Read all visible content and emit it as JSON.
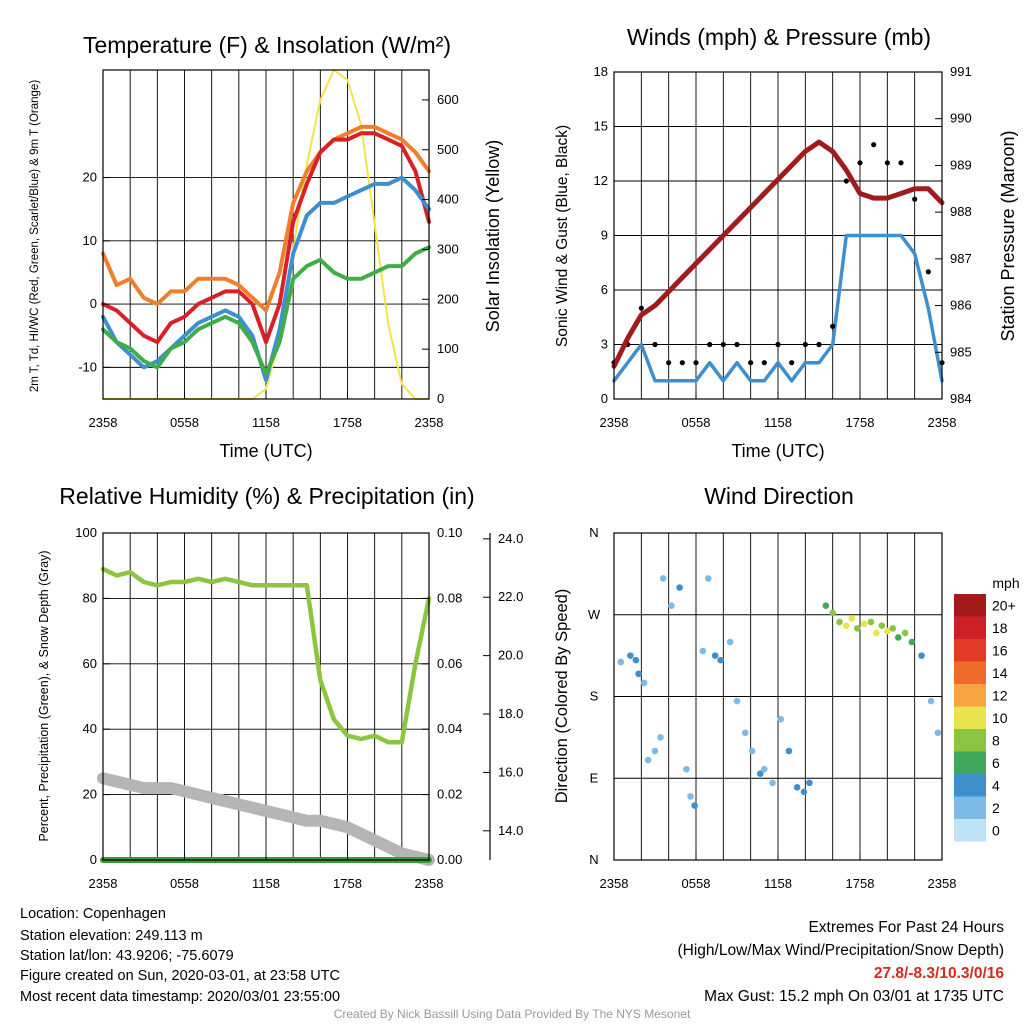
{
  "x_ticks": [
    "2358",
    "0558",
    "1158",
    "1758",
    "2358"
  ],
  "chart_data": [
    {
      "type": "line",
      "title": "Temperature (F) & Insolation (W/m²)",
      "xlabel": "Time (UTC)",
      "ylabel": "2m T, Td, HI/WC (Red, Green, Scarlet/Blue) & 9m T (Orange)",
      "y2label": "Solar Insolation (Yellow)",
      "ylim": [
        -15,
        37
      ],
      "y2lim": [
        0,
        660
      ],
      "y_ticks": [
        -10,
        0,
        10,
        20
      ],
      "y2_ticks": [
        0,
        100,
        200,
        300,
        400,
        500,
        600
      ],
      "x": [
        0,
        1,
        2,
        3,
        4,
        5,
        6,
        7,
        8,
        9,
        10,
        11,
        12,
        13,
        14,
        15,
        16,
        17,
        18,
        19,
        20,
        21,
        22,
        23,
        24
      ],
      "series": [
        {
          "color": "#f07f2a",
          "values": [
            8,
            3,
            4,
            1,
            0,
            2,
            2,
            4,
            4,
            4,
            3,
            1,
            -1,
            5,
            16,
            21,
            24,
            26,
            27,
            28,
            28,
            27,
            26,
            24,
            21
          ]
        },
        {
          "color": "#d92026",
          "values": [
            0,
            -1,
            -3,
            -5,
            -6,
            -3,
            -2,
            0,
            1,
            2,
            2,
            0,
            -6,
            0,
            13,
            19,
            24,
            26,
            26,
            27,
            27,
            26,
            25,
            21,
            13
          ]
        },
        {
          "color": "#3e8fcf",
          "values": [
            -2,
            -6,
            -8,
            -10,
            -9,
            -7,
            -5,
            -3,
            -2,
            -1,
            -2,
            -5,
            -12,
            -4,
            8,
            14,
            16,
            16,
            17,
            18,
            19,
            19,
            20,
            18,
            15
          ]
        },
        {
          "color": "#3fae49",
          "values": [
            -4,
            -6,
            -7,
            -9,
            -10,
            -7,
            -6,
            -4,
            -3,
            -2,
            -3,
            -6,
            -11,
            -6,
            4,
            6,
            7,
            5,
            4,
            4,
            5,
            6,
            6,
            8,
            9
          ]
        }
      ],
      "insolation": {
        "color": "#f5e24a",
        "x": [
          0,
          11,
          12,
          13,
          14,
          15,
          16,
          17,
          18,
          19,
          20,
          21,
          22,
          23,
          24
        ],
        "values": [
          0,
          0,
          20,
          120,
          300,
          470,
          600,
          660,
          640,
          550,
          350,
          150,
          30,
          0,
          0
        ]
      }
    },
    {
      "type": "scatter",
      "title": "Winds (mph) & Pressure (mb)",
      "xlabel": "Time (UTC)",
      "ylabel": "Sonic Wind & Gust (Blue, Black)",
      "y2label": "Station Pressure (Maroon)",
      "ylim": [
        0,
        18
      ],
      "y2lim": [
        984,
        991
      ],
      "y_ticks": [
        0,
        3,
        6,
        9,
        12,
        15,
        18
      ],
      "y2_ticks": [
        984,
        985,
        986,
        987,
        988,
        989,
        990,
        991
      ],
      "x": [
        0,
        1,
        2,
        3,
        4,
        5,
        6,
        7,
        8,
        9,
        10,
        11,
        12,
        13,
        14,
        15,
        16,
        17,
        18,
        19,
        20,
        21,
        22,
        23,
        24
      ],
      "series": [
        {
          "color": "#3e8fcf",
          "values": [
            1,
            2,
            3,
            1,
            1,
            1,
            1,
            2,
            1,
            2,
            1,
            1,
            2,
            1,
            2,
            2,
            3,
            9,
            9,
            9,
            9,
            9,
            8,
            5,
            1
          ]
        },
        {
          "color": "#000000",
          "values": [
            2,
            3,
            5,
            3,
            2,
            2,
            2,
            3,
            3,
            3,
            2,
            2,
            3,
            2,
            3,
            3,
            4,
            12,
            13,
            14,
            13,
            13,
            11,
            7,
            2
          ]
        }
      ],
      "pressure": {
        "color": "#a01c1c",
        "values": [
          984.7,
          985.3,
          985.8,
          986.0,
          986.3,
          986.6,
          986.9,
          987.2,
          987.5,
          987.8,
          988.1,
          988.4,
          988.7,
          989.0,
          989.3,
          989.5,
          989.3,
          988.9,
          988.4,
          988.3,
          988.3,
          988.4,
          988.5,
          988.5,
          988.2
        ]
      }
    },
    {
      "type": "line",
      "title": "Relative Humidity (%) & Precipitation (in)",
      "ylabel": "Percent, Precipitation (Green), & Snow Depth (Gray)",
      "ylim": [
        0,
        100
      ],
      "y2lim": [
        0,
        0.1
      ],
      "y3lim": [
        13,
        24.2
      ],
      "y_ticks": [
        0,
        20,
        40,
        60,
        80,
        100
      ],
      "y2_ticks": [
        "0.00",
        "0.02",
        "0.04",
        "0.06",
        "0.08",
        "0.10"
      ],
      "y3_ticks": [
        "14.0",
        "16.0",
        "18.0",
        "20.0",
        "22.0",
        "24.0"
      ],
      "x": [
        0,
        1,
        2,
        3,
        4,
        5,
        6,
        7,
        8,
        9,
        10,
        11,
        12,
        13,
        14,
        15,
        16,
        17,
        18,
        19,
        20,
        21,
        22,
        23,
        24
      ],
      "series": [
        {
          "name": "Relative Humidity",
          "color": "#8cc540",
          "values": [
            89,
            87,
            88,
            85,
            84,
            85,
            85,
            86,
            85,
            86,
            85,
            84,
            84,
            84,
            84,
            84,
            55,
            43,
            38,
            37,
            38,
            36,
            36,
            60,
            80
          ]
        },
        {
          "name": "Precipitation",
          "color": "#3a9a3a",
          "values": [
            0,
            0,
            0,
            0,
            0,
            0,
            0,
            0,
            0,
            0,
            0,
            0,
            0,
            0,
            0,
            0,
            0,
            0,
            0,
            0,
            0,
            0,
            0,
            0,
            0
          ]
        },
        {
          "name": "Snow Depth",
          "color": "#b5b5b5",
          "values": [
            25,
            24,
            23,
            22,
            22,
            22,
            21,
            20,
            19,
            18,
            17,
            16,
            15,
            14,
            13,
            12,
            12,
            11,
            10,
            8,
            6,
            4,
            2,
            1,
            0
          ]
        }
      ]
    },
    {
      "type": "scatter",
      "title": "Wind Direction",
      "ylabel": "Direction (Colored By Speed)",
      "y_ticks": [
        "N",
        "E",
        "S",
        "W",
        "N"
      ],
      "colorbar": {
        "title": "mph",
        "labels": [
          "20+",
          "18",
          "16",
          "14",
          "12",
          "10",
          "8",
          "6",
          "4",
          "2",
          "0"
        ],
        "colors": [
          "#a31a1a",
          "#cc2026",
          "#e23b2a",
          "#ef6c2c",
          "#f7a441",
          "#e9e34c",
          "#8cc540",
          "#3fa85d",
          "#3f8fcc",
          "#7bbbe6",
          "#bde3f5"
        ]
      },
      "points": [
        {
          "x": 0.5,
          "y": 218,
          "s": 2
        },
        {
          "x": 1.2,
          "y": 225,
          "s": 3
        },
        {
          "x": 1.6,
          "y": 220,
          "s": 4
        },
        {
          "x": 1.8,
          "y": 205,
          "s": 3
        },
        {
          "x": 2.2,
          "y": 195,
          "s": 2
        },
        {
          "x": 2.5,
          "y": 110,
          "s": 1
        },
        {
          "x": 3.0,
          "y": 120,
          "s": 2
        },
        {
          "x": 3.4,
          "y": 135,
          "s": 1
        },
        {
          "x": 3.6,
          "y": 310,
          "s": 1
        },
        {
          "x": 4.2,
          "y": 280,
          "s": 2
        },
        {
          "x": 4.8,
          "y": 300,
          "s": 3
        },
        {
          "x": 5.3,
          "y": 100,
          "s": 2
        },
        {
          "x": 5.6,
          "y": 70,
          "s": 1
        },
        {
          "x": 5.9,
          "y": 60,
          "s": 3
        },
        {
          "x": 6.5,
          "y": 230,
          "s": 2
        },
        {
          "x": 6.9,
          "y": 310,
          "s": 1
        },
        {
          "x": 7.4,
          "y": 225,
          "s": 3
        },
        {
          "x": 7.8,
          "y": 220,
          "s": 4
        },
        {
          "x": 8.5,
          "y": 240,
          "s": 2
        },
        {
          "x": 9.0,
          "y": 175,
          "s": 1
        },
        {
          "x": 9.6,
          "y": 140,
          "s": 2
        },
        {
          "x": 10.1,
          "y": 120,
          "s": 2
        },
        {
          "x": 10.7,
          "y": 95,
          "s": 3
        },
        {
          "x": 11.0,
          "y": 100,
          "s": 2
        },
        {
          "x": 11.6,
          "y": 85,
          "s": 1
        },
        {
          "x": 12.2,
          "y": 155,
          "s": 2
        },
        {
          "x": 12.8,
          "y": 120,
          "s": 4
        },
        {
          "x": 13.4,
          "y": 80,
          "s": 3
        },
        {
          "x": 13.9,
          "y": 75,
          "s": 4
        },
        {
          "x": 14.3,
          "y": 85,
          "s": 3
        },
        {
          "x": 15.5,
          "y": 280,
          "s": 6
        },
        {
          "x": 16.0,
          "y": 272,
          "s": 7
        },
        {
          "x": 16.5,
          "y": 262,
          "s": 8
        },
        {
          "x": 17.0,
          "y": 258,
          "s": 9
        },
        {
          "x": 17.4,
          "y": 266,
          "s": 10
        },
        {
          "x": 17.8,
          "y": 255,
          "s": 8
        },
        {
          "x": 18.3,
          "y": 260,
          "s": 10
        },
        {
          "x": 18.8,
          "y": 262,
          "s": 7
        },
        {
          "x": 19.2,
          "y": 250,
          "s": 9
        },
        {
          "x": 19.6,
          "y": 258,
          "s": 8
        },
        {
          "x": 20.0,
          "y": 252,
          "s": 10
        },
        {
          "x": 20.4,
          "y": 255,
          "s": 7
        },
        {
          "x": 20.8,
          "y": 245,
          "s": 6
        },
        {
          "x": 21.3,
          "y": 250,
          "s": 8
        },
        {
          "x": 21.8,
          "y": 240,
          "s": 5
        },
        {
          "x": 22.5,
          "y": 225,
          "s": 3
        },
        {
          "x": 23.2,
          "y": 175,
          "s": 2
        },
        {
          "x": 23.7,
          "y": 140,
          "s": 1
        }
      ]
    }
  ],
  "info": {
    "location": "Location: Copenhagen",
    "elevation": "Station elevation: 249.113 m",
    "latlon": "Station lat/lon: 43.9206; -75.6079",
    "created": "Figure created on Sun, 2020-03-01, at 23:58 UTC",
    "recent": "Most recent data timestamp: 2020/03/01 23:55:00"
  },
  "extremes": {
    "title": "Extremes For Past 24 Hours",
    "legend": "(High/Low/Max Wind/Precipitation/Snow Depth)",
    "values": "27.8/-8.3/10.3/0/16",
    "gust": "Max Gust: 15.2 mph On 03/01 at 1735 UTC"
  },
  "credit": "Created By Nick Bassill Using Data Provided By The NYS Mesonet"
}
